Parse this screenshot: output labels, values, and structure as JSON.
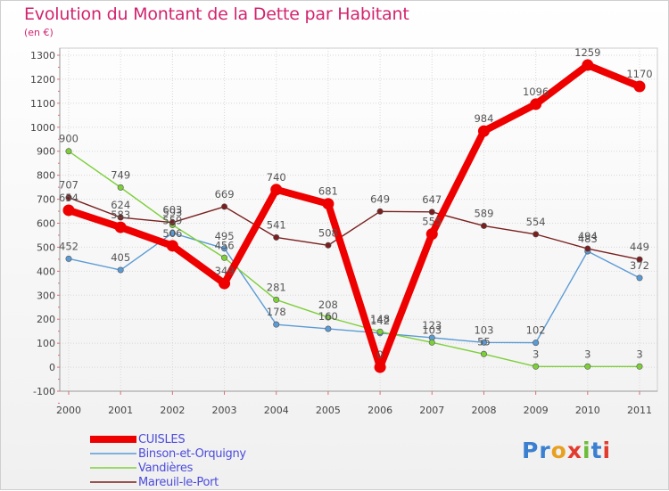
{
  "title": "Evolution du Montant de la Dette par Habitant",
  "unit_label": "(en €)",
  "logo_text": "Proxiti",
  "chart_data": {
    "type": "line",
    "title": "Evolution du Montant de la Dette par Habitant",
    "subtitle": "(en €)",
    "xlabel": "",
    "ylabel": "",
    "x": [
      "2000",
      "2001",
      "2002",
      "2003",
      "2004",
      "2005",
      "2006",
      "2007",
      "2008",
      "2009",
      "2010",
      "2011"
    ],
    "ylim": [
      -100,
      1300
    ],
    "yticks": [
      -100,
      0,
      100,
      200,
      300,
      400,
      500,
      600,
      700,
      800,
      900,
      1000,
      1100,
      1200,
      1300
    ],
    "grid": true,
    "legend_position": "bottom-left",
    "series": [
      {
        "name": "CUISLES",
        "color": "#ee0000",
        "values": [
          654,
          583,
          506,
          349,
          740,
          681,
          0,
          555,
          984,
          1096,
          1259,
          1170
        ]
      },
      {
        "name": "Binson-et-Orquigny",
        "color": "#5b9bd5",
        "values": [
          452,
          405,
          559,
          495,
          178,
          160,
          142,
          123,
          103,
          102,
          483,
          372
        ]
      },
      {
        "name": "Vandières",
        "color": "#7dcf3a",
        "values": [
          900,
          749,
          593,
          456,
          281,
          208,
          148,
          103,
          55,
          3,
          3,
          3
        ]
      },
      {
        "name": "Mareuil-le-Port",
        "color": "#7a1f1f",
        "values": [
          707,
          624,
          603,
          669,
          541,
          508,
          649,
          647,
          589,
          554,
          494,
          449
        ]
      }
    ]
  }
}
